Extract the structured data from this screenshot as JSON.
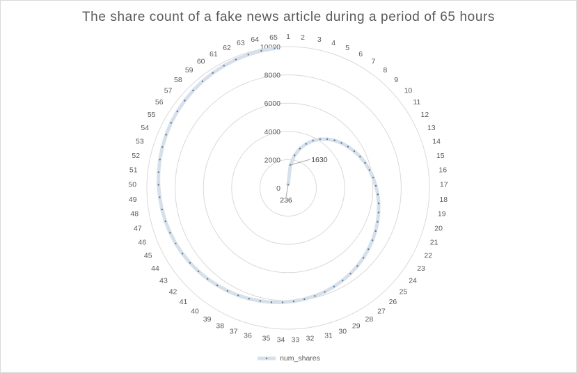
{
  "chart_data": {
    "type": "radar",
    "title": "The share count of a fake news article during a period of 65 hours",
    "categories": [
      "1",
      "2",
      "3",
      "4",
      "5",
      "6",
      "7",
      "8",
      "9",
      "10",
      "11",
      "12",
      "13",
      "14",
      "15",
      "16",
      "17",
      "18",
      "19",
      "20",
      "21",
      "22",
      "23",
      "24",
      "25",
      "26",
      "27",
      "28",
      "29",
      "30",
      "31",
      "32",
      "33",
      "34",
      "35",
      "36",
      "37",
      "38",
      "39",
      "40",
      "41",
      "42",
      "43",
      "44",
      "45",
      "46",
      "47",
      "48",
      "49",
      "50",
      "51",
      "52",
      "53",
      "54",
      "55",
      "56",
      "57",
      "58",
      "59",
      "60",
      "61",
      "62",
      "63",
      "64",
      "65"
    ],
    "rlim": [
      0,
      10000
    ],
    "rticks": [
      "0",
      "2000",
      "4000",
      "6000",
      "8000",
      "10000"
    ],
    "series": [
      {
        "name": "num_shares",
        "color": "#d6e0ea",
        "values": [
          236,
          1630,
          2350,
          2900,
          3360,
          3780,
          4120,
          4420,
          4700,
          4930,
          5140,
          5350,
          5550,
          5730,
          5900,
          6060,
          6210,
          6360,
          6500,
          6630,
          6770,
          6900,
          7030,
          7150,
          7270,
          7390,
          7500,
          7600,
          7700,
          7800,
          7880,
          7960,
          8040,
          8110,
          8180,
          8250,
          8320,
          8390,
          8460,
          8530,
          8600,
          8670,
          8740,
          8810,
          8880,
          8940,
          9000,
          9060,
          9120,
          9180,
          9240,
          9300,
          9360,
          9420,
          9480,
          9530,
          9580,
          9630,
          9680,
          9730,
          9770,
          9810,
          9850,
          9890,
          9930
        ]
      }
    ],
    "data_labels": [
      {
        "category": "1",
        "text": "236"
      },
      {
        "category": "2",
        "text": "1630"
      }
    ],
    "legend": {
      "position": "bottom",
      "entry": "num_shares"
    }
  }
}
